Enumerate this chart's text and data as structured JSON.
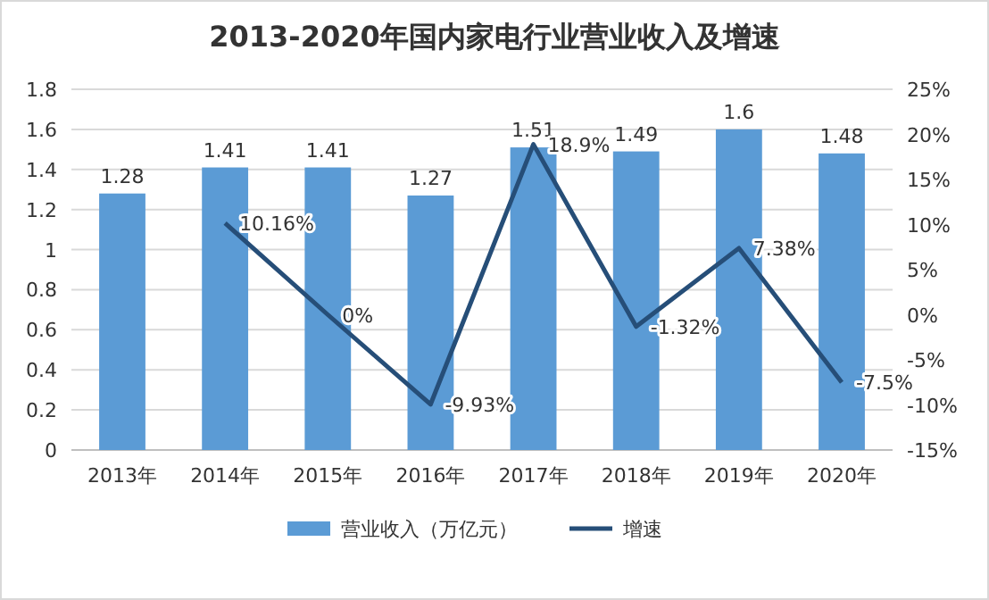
{
  "chart_data": {
    "type": "bar",
    "title": "2013-2020年国内家电行业营业收入及增速",
    "categories": [
      "2013年",
      "2014年",
      "2015年",
      "2016年",
      "2017年",
      "2018年",
      "2019年",
      "2020年"
    ],
    "series": [
      {
        "name": "营业收入（万亿元）",
        "color": "#5b9bd5",
        "values": [
          1.28,
          1.41,
          1.41,
          1.27,
          1.51,
          1.49,
          1.6,
          1.48
        ]
      },
      {
        "name": "增速",
        "type": "line",
        "axis": "y2",
        "color": "#264e78",
        "values": [
          null,
          10.16,
          0,
          -9.93,
          18.9,
          -1.32,
          7.38,
          -7.5
        ],
        "value_labels": [
          null,
          "10.16%",
          "0%",
          "-9.93%",
          "18.9%",
          "-1.32%",
          "7.38%",
          "-7.5%"
        ]
      }
    ],
    "ylim": [
      0,
      1.8
    ],
    "yticks": [
      0,
      0.2,
      0.4,
      0.6,
      0.8,
      1,
      1.2,
      1.4,
      1.6,
      1.8
    ],
    "y2lim": [
      -15,
      25
    ],
    "y2ticks": [
      {
        "value": -15,
        "label": "-15%"
      },
      {
        "value": -10,
        "label": "-10%"
      },
      {
        "value": -5,
        "label": "-5%"
      },
      {
        "value": 0,
        "label": "0%"
      },
      {
        "value": 5,
        "label": "5%"
      },
      {
        "value": 10,
        "label": "10%"
      },
      {
        "value": 15,
        "label": "15%"
      },
      {
        "value": 20,
        "label": "20%"
      },
      {
        "value": 25,
        "label": "25%"
      }
    ],
    "grid": "y",
    "legend": "bottom",
    "data_labels": true,
    "line_style": "solid",
    "marker": "none"
  }
}
